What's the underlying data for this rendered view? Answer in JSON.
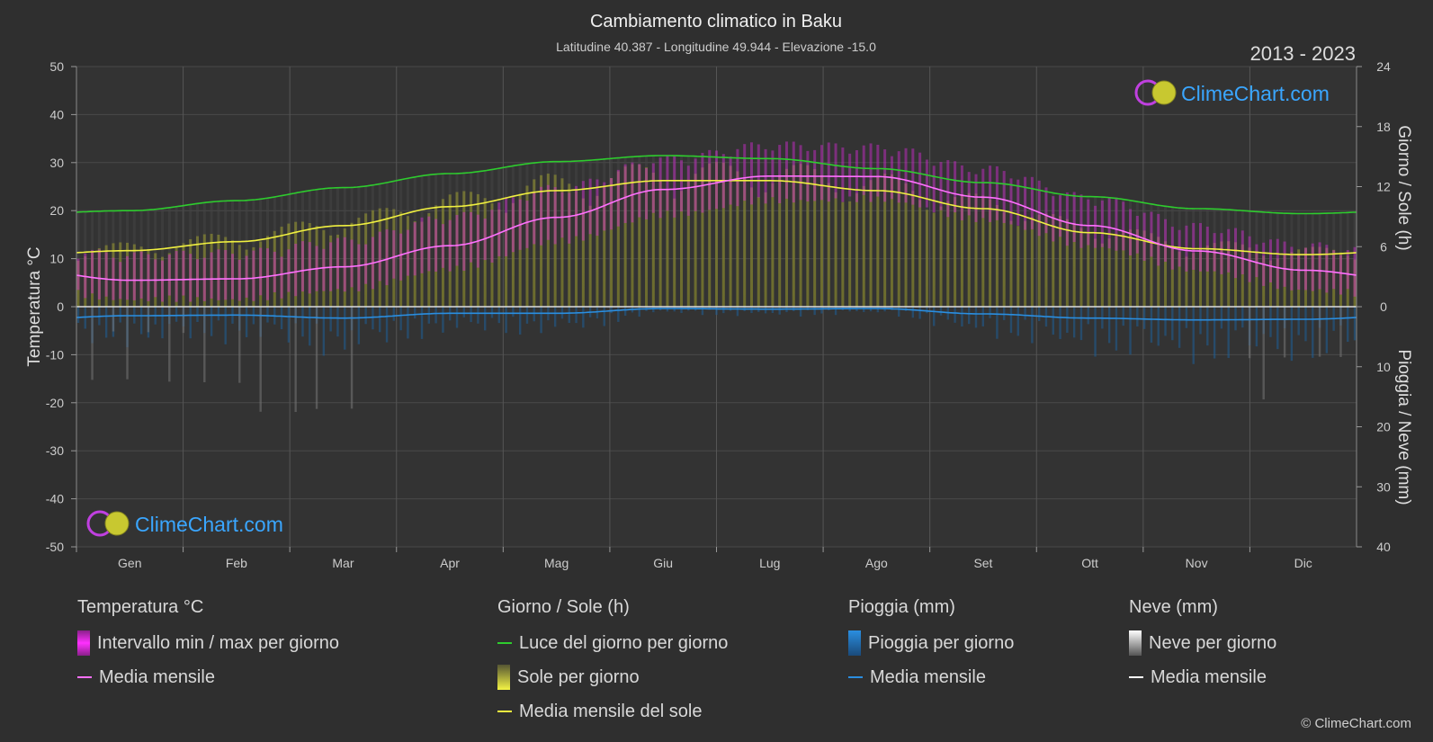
{
  "title": "Cambiamento climatico in Baku",
  "subtitle": "Latitudine 40.387 - Longitudine 49.944 - Elevazione -15.0",
  "period": "2013 - 2023",
  "logo_text": "ClimeChart.com",
  "copyright": "© ClimeChart.com",
  "colors": {
    "background": "#2f2f2f",
    "temp_range": "#e030e0",
    "temp_mean": "#ff70ff",
    "daylight": "#2ecc2e",
    "sunshine": "#c8c838",
    "sunshine_mean": "#f0f040",
    "rain": "#1e7fd0",
    "rain_mean": "#2a8ee0",
    "snow": "#cccccc",
    "snow_mean": "#ffffff"
  },
  "chart_data": {
    "type": "line",
    "months": [
      "Gen",
      "Feb",
      "Mar",
      "Apr",
      "Mag",
      "Giu",
      "Lug",
      "Ago",
      "Set",
      "Ott",
      "Nov",
      "Dic"
    ],
    "y_left": {
      "label": "Temperatura °C",
      "range": [
        -50,
        50
      ],
      "ticks": [
        "50",
        "40",
        "30",
        "20",
        "10",
        "0",
        "-10",
        "-20",
        "-30",
        "-40",
        "-50"
      ]
    },
    "y_right_top": {
      "label": "Giorno / Sole (h)",
      "range": [
        0,
        24
      ],
      "ticks": [
        "24",
        "18",
        "12",
        "6",
        "0"
      ]
    },
    "y_right_bottom": {
      "label": "Pioggia / Neve (mm)",
      "range": [
        0,
        40
      ],
      "ticks": [
        "10",
        "20",
        "30",
        "40"
      ]
    },
    "grid": true,
    "series": [
      {
        "name": "Luce del giorno per giorno",
        "unit": "h",
        "values": [
          9.6,
          10.6,
          11.9,
          13.3,
          14.5,
          15.1,
          14.8,
          13.8,
          12.4,
          11.0,
          9.8,
          9.3
        ]
      },
      {
        "name": "Media mensile del sole",
        "unit": "h",
        "values": [
          5.6,
          6.5,
          8.1,
          10.0,
          11.6,
          12.6,
          12.6,
          11.6,
          9.8,
          7.4,
          5.8,
          5.2
        ]
      },
      {
        "name": "Media mensile",
        "group": "Temperatura °C",
        "unit": "°C",
        "values": [
          5.5,
          5.8,
          8.3,
          12.7,
          18.6,
          24.4,
          27.2,
          27.1,
          22.8,
          16.9,
          11.6,
          7.6
        ]
      },
      {
        "name": "Media mensile",
        "group": "Pioggia (mm)",
        "unit": "mm",
        "values": [
          1.5,
          1.4,
          1.9,
          1.1,
          1.1,
          0.3,
          0.4,
          0.3,
          1.2,
          1.9,
          2.2,
          2.1
        ]
      }
    ],
    "temp_range_daily": {
      "name": "Intervallo min / max per giorno",
      "min": [
        2.5,
        2.5,
        4.5,
        8.8,
        14.5,
        20.0,
        23.0,
        23.3,
        19.0,
        13.5,
        8.5,
        4.5
      ],
      "max": [
        9.0,
        9.5,
        12.0,
        17.0,
        23.0,
        29.0,
        32.0,
        31.5,
        27.0,
        21.0,
        15.0,
        11.0
      ]
    }
  },
  "legend": {
    "groups": [
      {
        "title": "Temperatura °C",
        "items": [
          {
            "label": "Intervallo min / max per giorno",
            "swatch": "box",
            "color": "#d42ad4"
          },
          {
            "label": "Media mensile",
            "swatch": "line",
            "color": "#ff70ff"
          }
        ]
      },
      {
        "title": "Giorno / Sole (h)",
        "items": [
          {
            "label": "Luce del giorno per giorno",
            "swatch": "line",
            "color": "#2ecc2e"
          },
          {
            "label": "Sole per giorno",
            "swatch": "box",
            "color": "#d4d440"
          },
          {
            "label": "Media mensile del sole",
            "swatch": "line",
            "color": "#f0f040"
          }
        ]
      },
      {
        "title": "Pioggia (mm)",
        "items": [
          {
            "label": "Pioggia per giorno",
            "swatch": "box",
            "color": "#1e7fd0"
          },
          {
            "label": "Media mensile",
            "swatch": "line",
            "color": "#2a8ee0"
          }
        ]
      },
      {
        "title": "Neve (mm)",
        "items": [
          {
            "label": "Neve per giorno",
            "swatch": "box",
            "color": "#dddddd"
          },
          {
            "label": "Media mensile",
            "swatch": "line",
            "color": "#ffffff"
          }
        ]
      }
    ]
  }
}
